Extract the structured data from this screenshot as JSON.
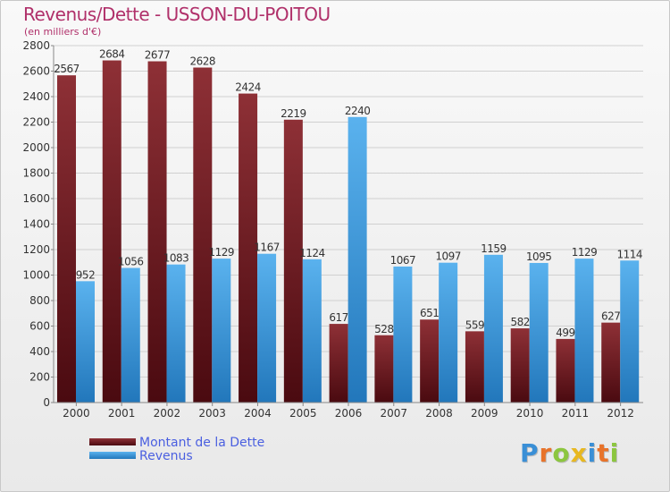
{
  "header": {
    "title": "Revenus/Dette - USSON-DU-POITOU",
    "subtitle": "(en milliers d'€)"
  },
  "legend": {
    "items": [
      {
        "label": "Montant de la Dette",
        "color": "#7a1e24"
      },
      {
        "label": "Revenus",
        "color": "#4aa3e6"
      }
    ]
  },
  "logo": {
    "letters": [
      "P",
      "r",
      "o",
      "x",
      "i",
      "t",
      "i"
    ],
    "colors": [
      "#3a8fd6",
      "#e8732a",
      "#8cc63f",
      "#e8b820",
      "#3a8fd6",
      "#e8732a",
      "#8cc63f"
    ]
  },
  "chart_data": {
    "type": "bar",
    "title": "Revenus/Dette - USSON-DU-POITOU",
    "ylabel": "(en milliers d'€)",
    "xlabel": "",
    "categories": [
      "2000",
      "2001",
      "2002",
      "2003",
      "2004",
      "2005",
      "2006",
      "2007",
      "2008",
      "2009",
      "2010",
      "2011",
      "2012"
    ],
    "ylim": [
      0,
      2800
    ],
    "yticks": [
      0,
      200,
      400,
      600,
      800,
      1000,
      1200,
      1400,
      1600,
      1800,
      2000,
      2200,
      2400,
      2600,
      2800
    ],
    "grid": true,
    "legend_position": "bottom-left",
    "series": [
      {
        "name": "Montant de la Dette",
        "color": "#7a1e24",
        "values": [
          2567,
          2684,
          2677,
          2628,
          2424,
          2219,
          617,
          528,
          651,
          559,
          582,
          499,
          627
        ]
      },
      {
        "name": "Revenus",
        "color": "#4aa3e6",
        "values": [
          952,
          1056,
          1083,
          1129,
          1167,
          1124,
          2240,
          1067,
          1097,
          1159,
          1095,
          1129,
          1114
        ]
      }
    ]
  }
}
